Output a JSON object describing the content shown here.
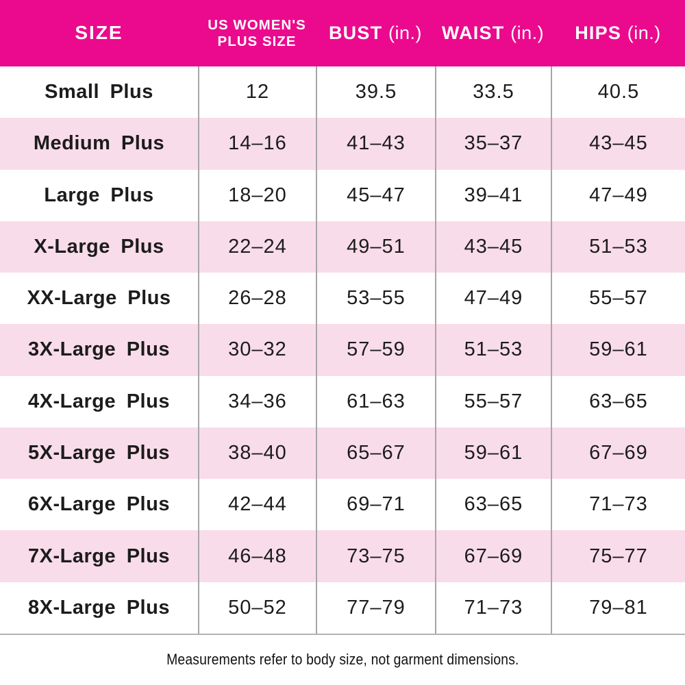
{
  "colors": {
    "header_bg": "#EB0A8D",
    "header_text": "#FFFFFF",
    "stripe_pink": "#F9DCE9",
    "divider_gray": "#A6A6A6",
    "body_text": "#1C1C1C"
  },
  "header": {
    "size_label": "SIZE",
    "us_plus_line1": "US WOMEN'S",
    "us_plus_line2": "PLUS SIZE",
    "bust_name": "BUST",
    "bust_unit": "(in.)",
    "waist_name": "WAIST",
    "waist_unit": "(in.)",
    "hips_name": "HIPS",
    "hips_unit": "(in.)"
  },
  "footnote": "Measurements refer to body size, not garment dimensions.",
  "chart_data": {
    "type": "table",
    "columns": [
      "SIZE",
      "US WOMEN'S PLUS SIZE",
      "BUST (in.)",
      "WAIST (in.)",
      "HIPS (in.)"
    ],
    "rows": [
      [
        "Small Plus",
        "12",
        "39.5",
        "33.5",
        "40.5"
      ],
      [
        "Medium Plus",
        "14–16",
        "41–43",
        "35–37",
        "43–45"
      ],
      [
        "Large Plus",
        "18–20",
        "45–47",
        "39–41",
        "47–49"
      ],
      [
        "X-Large Plus",
        "22–24",
        "49–51",
        "43–45",
        "51–53"
      ],
      [
        "XX-Large Plus",
        "26–28",
        "53–55",
        "47–49",
        "55–57"
      ],
      [
        "3X-Large Plus",
        "30–32",
        "57–59",
        "51–53",
        "59–61"
      ],
      [
        "4X-Large Plus",
        "34–36",
        "61–63",
        "55–57",
        "63–65"
      ],
      [
        "5X-Large Plus",
        "38–40",
        "65–67",
        "59–61",
        "67–69"
      ],
      [
        "6X-Large Plus",
        "42–44",
        "69–71",
        "63–65",
        "71–73"
      ],
      [
        "7X-Large Plus",
        "46–48",
        "73–75",
        "67–69",
        "75–77"
      ],
      [
        "8X-Large Plus",
        "50–52",
        "77–79",
        "71–73",
        "79–81"
      ]
    ],
    "footnote": "Measurements refer to body size, not garment dimensions."
  }
}
